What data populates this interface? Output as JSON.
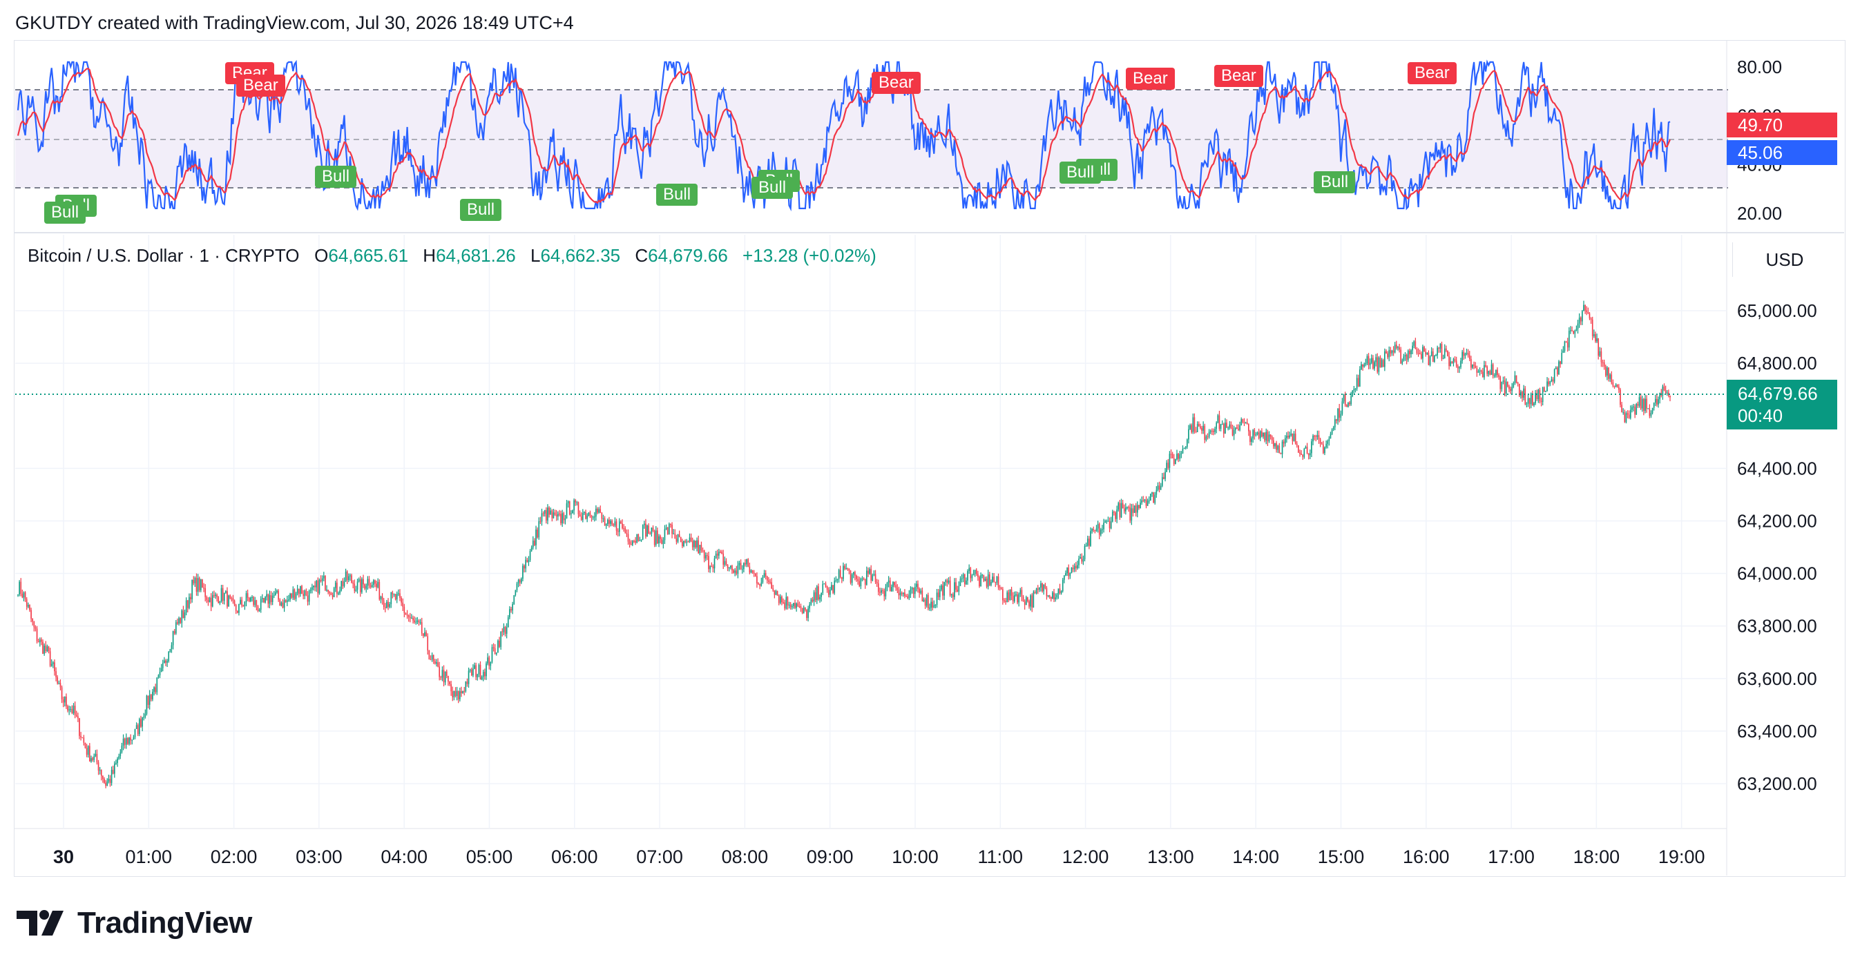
{
  "header": {
    "caption": "GKUTDY created with TradingView.com, Jul 30, 2026 18:49 UTC+4"
  },
  "legend": {
    "symbol": "Bitcoin / U.S. Dollar · 1 · CRYPTO",
    "o_label": "O",
    "o": "64,665.61",
    "h_label": "H",
    "h": "64,681.26",
    "l_label": "L",
    "l": "64,662.35",
    "c_label": "C",
    "c": "64,679.66",
    "change": "+13.28 (+0.02%)"
  },
  "price_axis": {
    "currency": "USD",
    "ticks": [
      "65,000.00",
      "64,800.00",
      "64,400.00",
      "64,200.00",
      "64,000.00",
      "63,800.00",
      "63,600.00",
      "63,400.00",
      "63,200.00"
    ],
    "last_price": "64,679.66",
    "countdown": "00:40"
  },
  "osc_axis": {
    "ticks": [
      "80.00",
      "60.00",
      "40.00",
      "20.00"
    ],
    "signal_value": "49.70",
    "osc_value": "45.06"
  },
  "time_axis": [
    "30",
    "01:00",
    "02:00",
    "03:00",
    "04:00",
    "05:00",
    "06:00",
    "07:00",
    "08:00",
    "09:00",
    "10:00",
    "11:00",
    "12:00",
    "13:00",
    "14:00",
    "15:00",
    "16:00",
    "17:00",
    "18:00",
    "19:00"
  ],
  "signals": [
    {
      "label": "Bear",
      "type": "bear"
    },
    {
      "label": "Bear",
      "type": "bear"
    },
    {
      "label": "Bear",
      "type": "bear"
    },
    {
      "label": "Bear",
      "type": "bear"
    },
    {
      "label": "Bear",
      "type": "bear"
    },
    {
      "label": "Bear",
      "type": "bear"
    },
    {
      "label": "Bull",
      "type": "bull"
    },
    {
      "label": "Bull",
      "type": "bull"
    },
    {
      "label": "Bull",
      "type": "bull"
    },
    {
      "label": "Bull",
      "type": "bull"
    },
    {
      "label": "Bull",
      "type": "bull"
    },
    {
      "label": "Bull",
      "type": "bull"
    },
    {
      "label": "Bull",
      "type": "bull"
    },
    {
      "label": "Bull",
      "type": "bull"
    },
    {
      "label": "Bull",
      "type": "bull"
    },
    {
      "label": "Bull",
      "type": "bull"
    }
  ],
  "colors": {
    "up": "#089981",
    "down": "#f23645",
    "osc": "#2962ff",
    "signal": "#f23645",
    "band": "#ede7f6"
  },
  "brand": {
    "name": "TradingView"
  },
  "chart_data": {
    "type": "line",
    "title": "Bitcoin / U.S. Dollar · 1 · CRYPTO",
    "xlabel": "",
    "ylabel": "",
    "x": [
      "00:00",
      "00:30",
      "01:00",
      "01:30",
      "02:00",
      "02:30",
      "03:00",
      "03:30",
      "04:00",
      "04:30",
      "05:00",
      "05:30",
      "06:00",
      "06:30",
      "07:00",
      "07:30",
      "08:00",
      "08:30",
      "09:00",
      "09:30",
      "10:00",
      "10:30",
      "11:00",
      "11:30",
      "12:00",
      "12:30",
      "13:00",
      "13:30",
      "14:00",
      "14:30",
      "15:00",
      "15:30",
      "16:00",
      "16:30",
      "17:00",
      "17:30",
      "18:00",
      "18:30",
      "18:49"
    ],
    "series": [
      {
        "values": [
          63950,
          63550,
          63200,
          63500,
          63950,
          63880,
          63900,
          63950,
          63970,
          63850,
          63530,
          63700,
          64200,
          64250,
          64150,
          64150,
          64050,
          64000,
          63850,
          64000,
          63950,
          63900,
          64000,
          63900,
          63950,
          64200,
          64280,
          64550,
          64560,
          64500,
          64480,
          64800,
          64850,
          64820,
          64750,
          64650,
          65000,
          64600,
          64680
        ]
      }
    ],
    "ylim": [
      63100,
      65100
    ]
  }
}
